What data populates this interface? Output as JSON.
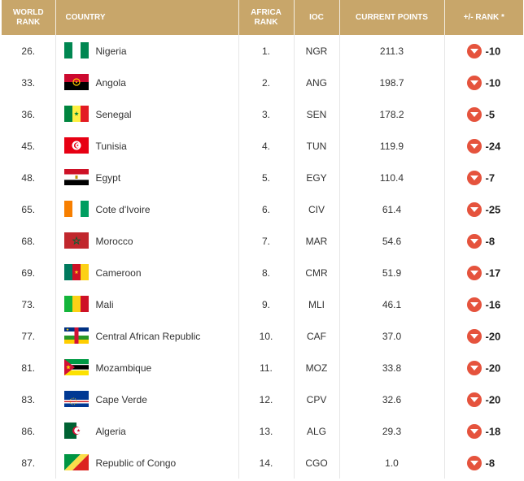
{
  "headers": {
    "world_rank": "WORLD RANK",
    "country": "COUNTRY",
    "africa_rank": "AFRICA RANK",
    "ioc": "IOC",
    "points": "CURRENT POINTS",
    "change": "+/- RANK *"
  },
  "colors": {
    "header_bg": "#c8a66a",
    "down_arrow": "#e5533d"
  },
  "rows": [
    {
      "world": "26.",
      "country": "Nigeria",
      "flag": "nigeria-flag-icon",
      "africa": "1.",
      "ioc": "NGR",
      "points": "211.3",
      "change": "-10"
    },
    {
      "world": "33.",
      "country": "Angola",
      "flag": "angola-flag-icon",
      "africa": "2.",
      "ioc": "ANG",
      "points": "198.7",
      "change": "-10"
    },
    {
      "world": "36.",
      "country": "Senegal",
      "flag": "senegal-flag-icon",
      "africa": "3.",
      "ioc": "SEN",
      "points": "178.2",
      "change": "-5"
    },
    {
      "world": "45.",
      "country": "Tunisia",
      "flag": "tunisia-flag-icon",
      "africa": "4.",
      "ioc": "TUN",
      "points": "119.9",
      "change": "-24"
    },
    {
      "world": "48.",
      "country": "Egypt",
      "flag": "egypt-flag-icon",
      "africa": "5.",
      "ioc": "EGY",
      "points": "110.4",
      "change": "-7"
    },
    {
      "world": "65.",
      "country": "Cote d'Ivoire",
      "flag": "cote-divoire-flag-icon",
      "africa": "6.",
      "ioc": "CIV",
      "points": "61.4",
      "change": "-25"
    },
    {
      "world": "68.",
      "country": "Morocco",
      "flag": "morocco-flag-icon",
      "africa": "7.",
      "ioc": "MAR",
      "points": "54.6",
      "change": "-8"
    },
    {
      "world": "69.",
      "country": "Cameroon",
      "flag": "cameroon-flag-icon",
      "africa": "8.",
      "ioc": "CMR",
      "points": "51.9",
      "change": "-17"
    },
    {
      "world": "73.",
      "country": "Mali",
      "flag": "mali-flag-icon",
      "africa": "9.",
      "ioc": "MLI",
      "points": "46.1",
      "change": "-16"
    },
    {
      "world": "77.",
      "country": "Central African Republic",
      "flag": "central-african-republic-flag-icon",
      "africa": "10.",
      "ioc": "CAF",
      "points": "37.0",
      "change": "-20"
    },
    {
      "world": "81.",
      "country": "Mozambique",
      "flag": "mozambique-flag-icon",
      "africa": "11.",
      "ioc": "MOZ",
      "points": "33.8",
      "change": "-20"
    },
    {
      "world": "83.",
      "country": "Cape Verde",
      "flag": "cape-verde-flag-icon",
      "africa": "12.",
      "ioc": "CPV",
      "points": "32.6",
      "change": "-20"
    },
    {
      "world": "86.",
      "country": "Algeria",
      "flag": "algeria-flag-icon",
      "africa": "13.",
      "ioc": "ALG",
      "points": "29.3",
      "change": "-18"
    },
    {
      "world": "87.",
      "country": "Republic of Congo",
      "flag": "republic-of-congo-flag-icon",
      "africa": "14.",
      "ioc": "CGO",
      "points": "1.0",
      "change": "-8"
    }
  ]
}
